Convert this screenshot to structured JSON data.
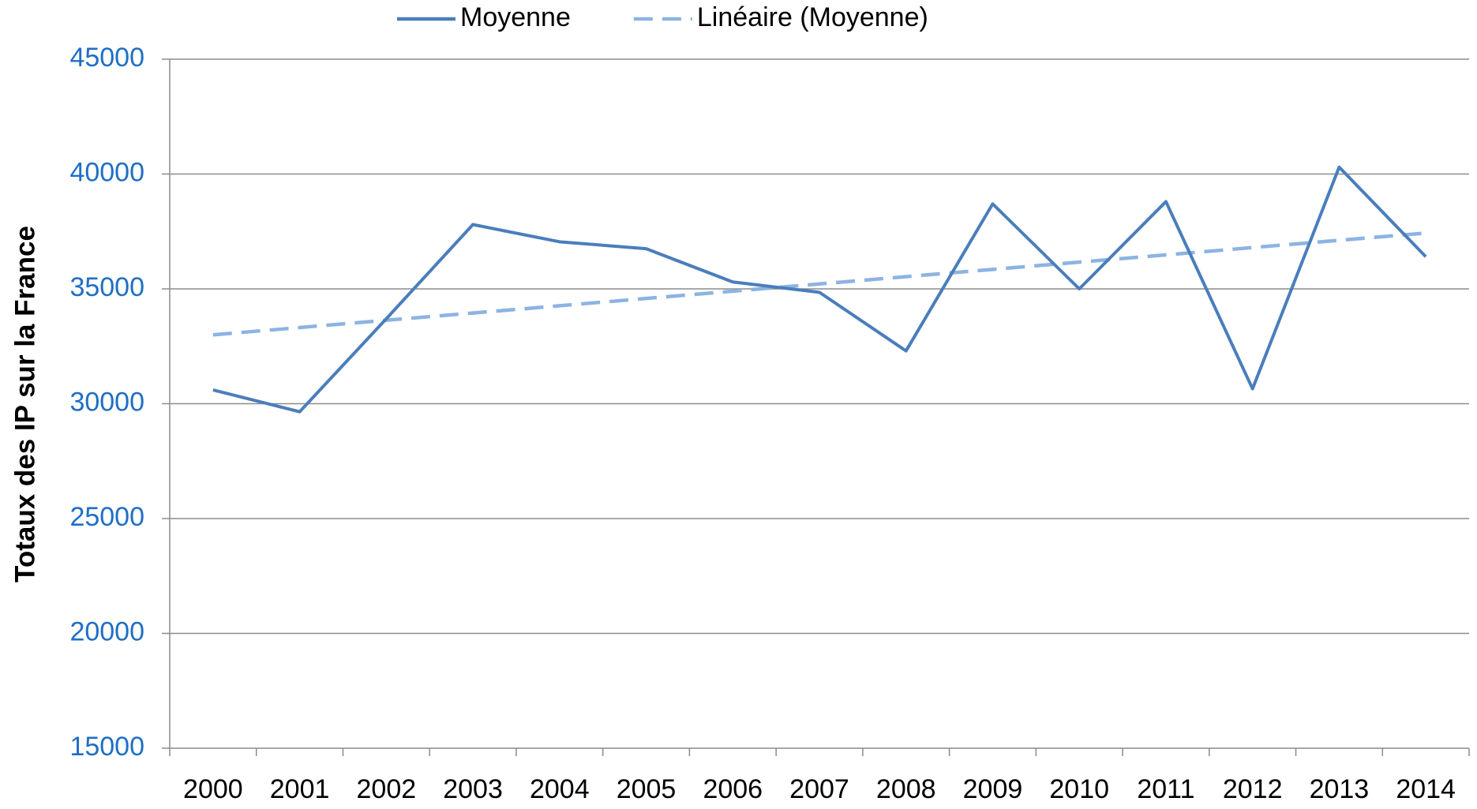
{
  "chart_data": {
    "type": "line",
    "y_axis_label": "Totaux des IP sur la France",
    "categories": [
      "2000",
      "2001",
      "2002",
      "2003",
      "2004",
      "2005",
      "2006",
      "2007",
      "2008",
      "2009",
      "2010",
      "2011",
      "2012",
      "2013",
      "2014"
    ],
    "series": [
      {
        "name": "Moyenne",
        "color": "#4a7ebb",
        "dashed": false,
        "values": [
          30600,
          29650,
          33700,
          37800,
          37050,
          36750,
          35300,
          34850,
          32300,
          38700,
          35000,
          38800,
          30650,
          40300,
          36400
        ]
      },
      {
        "name": "Linéaire (Moyenne)",
        "color": "#8db3e2",
        "dashed": true,
        "values": [
          33000,
          33316,
          33633,
          33949,
          34266,
          34582,
          34899,
          35215,
          35532,
          35848,
          36165,
          36481,
          36798,
          37114,
          37431
        ]
      }
    ],
    "ylim": [
      15000,
      45000
    ],
    "yticks": [
      15000,
      20000,
      25000,
      30000,
      35000,
      40000,
      45000
    ],
    "grid": true,
    "legend": "top"
  }
}
